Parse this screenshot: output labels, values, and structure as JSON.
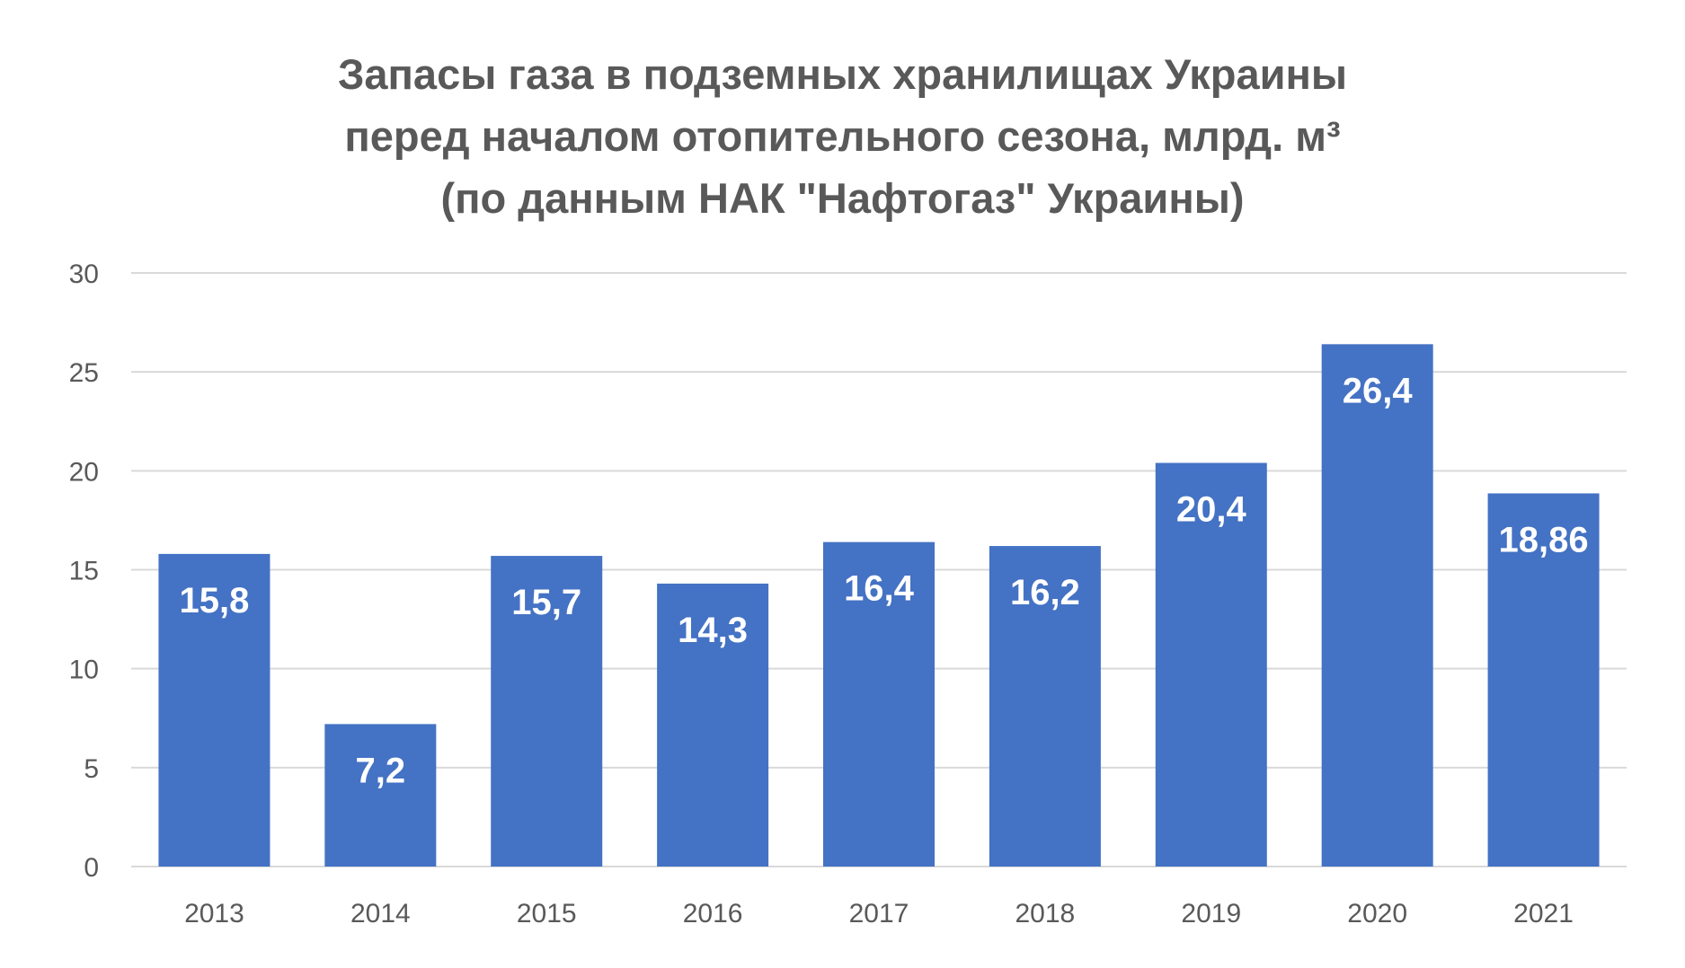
{
  "chart_data": {
    "type": "bar",
    "title": "Запасы газа в подземных хранилищах Украины перед началом отопительного сезона, млрд. м³ (по данным НАК \"Нафтогаз\" Украины)",
    "title_lines": [
      "Запасы газа в подземных хранилищах Украины",
      "перед началом отопительного сезона, млрд. м³",
      "(по данным НАК \"Нафтогаз\" Украины)"
    ],
    "categories": [
      "2013",
      "2014",
      "2015",
      "2016",
      "2017",
      "2018",
      "2019",
      "2020",
      "2021"
    ],
    "values": [
      15.8,
      7.2,
      15.7,
      14.3,
      16.4,
      16.2,
      20.4,
      26.4,
      18.86
    ],
    "data_labels": [
      "15,8",
      "7,2",
      "15,7",
      "14,3",
      "16,4",
      "16,2",
      "20,4",
      "26,4",
      "18,86"
    ],
    "yticks": [
      "0",
      "5",
      "10",
      "15",
      "20",
      "25",
      "30"
    ],
    "ylim": [
      0,
      30
    ],
    "xlabel": "",
    "ylabel": "",
    "grid": true,
    "legend": "none",
    "bar_color": "#4472c4"
  }
}
